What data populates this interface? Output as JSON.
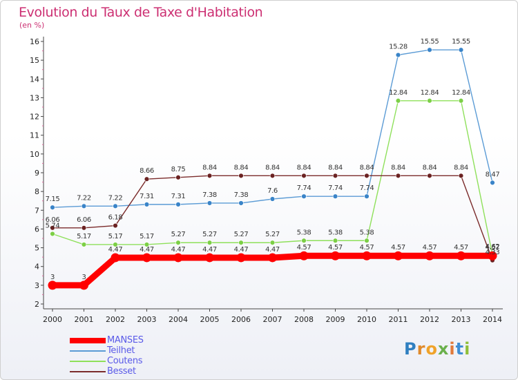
{
  "header": {
    "title": "Evolution du Taux de Taxe d'Habitation",
    "subtitle": "(en %)"
  },
  "logo": {
    "letters": [
      "P",
      "r",
      "o",
      "x",
      "i",
      "t",
      "i"
    ],
    "colors": [
      "#2f7fc0",
      "#e08a2b",
      "#f0a32a",
      "#6ab04c",
      "#e07a3b",
      "#3f8ed4",
      "#8fbf3a"
    ]
  },
  "chart_data": {
    "type": "line",
    "title": "Evolution du Taux de Taxe d'Habitation",
    "subtitle": "(en %)",
    "x": [
      "2000",
      "2001",
      "2002",
      "2003",
      "2004",
      "2005",
      "2006",
      "2007",
      "2008",
      "2009",
      "2010",
      "2011",
      "2012",
      "2013",
      "2014"
    ],
    "ylim": [
      2,
      16
    ],
    "yticks": [
      2,
      3,
      4,
      5,
      6,
      7,
      8,
      9,
      10,
      11,
      12,
      13,
      14,
      15,
      16
    ],
    "grid": false,
    "legend_position": "bottom-left",
    "series": [
      {
        "name": "MANSES",
        "color": "#ff0000",
        "bold": true,
        "values": [
          3,
          3,
          4.47,
          4.47,
          4.47,
          4.47,
          4.47,
          4.47,
          4.57,
          4.57,
          4.57,
          4.57,
          4.57,
          4.57,
          4.57
        ],
        "labels": [
          "3",
          "3",
          "4.47",
          "4.47",
          "4.47",
          "4.47",
          "4.47",
          "4.47",
          "4.57",
          "4.57",
          "4.57",
          "4.57",
          "4.57",
          "4.57",
          "4.57"
        ]
      },
      {
        "name": "Teilhet",
        "color": "#5b9bd5",
        "dot": "#3a84c8",
        "values": [
          7.15,
          7.22,
          7.22,
          7.31,
          7.31,
          7.38,
          7.38,
          7.6,
          7.74,
          7.74,
          7.74,
          15.28,
          15.55,
          15.55,
          8.47
        ],
        "labels": [
          "7.15",
          "7.22",
          "7.22",
          "7.31",
          "7.31",
          "7.38",
          "7.38",
          "7.6",
          "7.74",
          "7.74",
          "7.74",
          "15.28",
          "15.55",
          "15.55",
          "8.47"
        ]
      },
      {
        "name": "Coutens",
        "color": "#8ee05a",
        "dot": "#7ccf46",
        "values": [
          5.74,
          5.17,
          5.17,
          5.17,
          5.27,
          5.27,
          5.27,
          5.27,
          5.38,
          5.38,
          5.38,
          12.84,
          12.84,
          12.84,
          4.62
        ],
        "labels": [
          "5.74",
          "5.17",
          "5.17",
          "5.17",
          "5.27",
          "5.27",
          "5.27",
          "5.27",
          "5.38",
          "5.38",
          "5.38",
          "12.84",
          "12.84",
          "12.84",
          "4.62"
        ]
      },
      {
        "name": "Besset",
        "color": "#7b2b2b",
        "dot": "#6b2222",
        "values": [
          6.06,
          6.06,
          6.18,
          8.66,
          8.75,
          8.84,
          8.84,
          8.84,
          8.84,
          8.84,
          8.84,
          8.84,
          8.84,
          8.84,
          4.33
        ],
        "labels": [
          "6.06",
          "6.06",
          "6.18",
          "8.66",
          "8.75",
          "8.84",
          "8.84",
          "8.84",
          "8.84",
          "8.84",
          "8.84",
          "8.84",
          "8.84",
          "8.84",
          "4.33"
        ]
      }
    ]
  }
}
